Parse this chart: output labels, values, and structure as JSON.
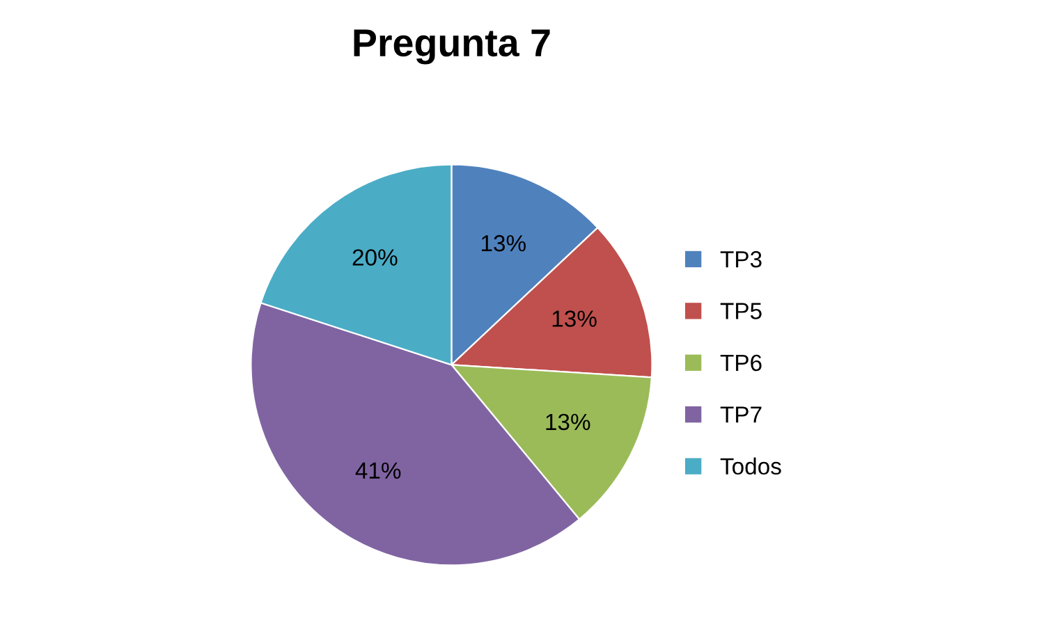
{
  "chart_data": {
    "type": "pie",
    "title": "Pregunta 7",
    "categories": [
      "TP3",
      "TP5",
      "TP6",
      "TP7",
      "Todos"
    ],
    "values": [
      13,
      13,
      13,
      41,
      20
    ],
    "colors": [
      "#4f81bd",
      "#c0504d",
      "#9bbb59",
      "#8064a2",
      "#4bacc6"
    ],
    "value_labels": [
      "13%",
      "13%",
      "13%",
      "41%",
      "20%"
    ],
    "legend": "right"
  }
}
